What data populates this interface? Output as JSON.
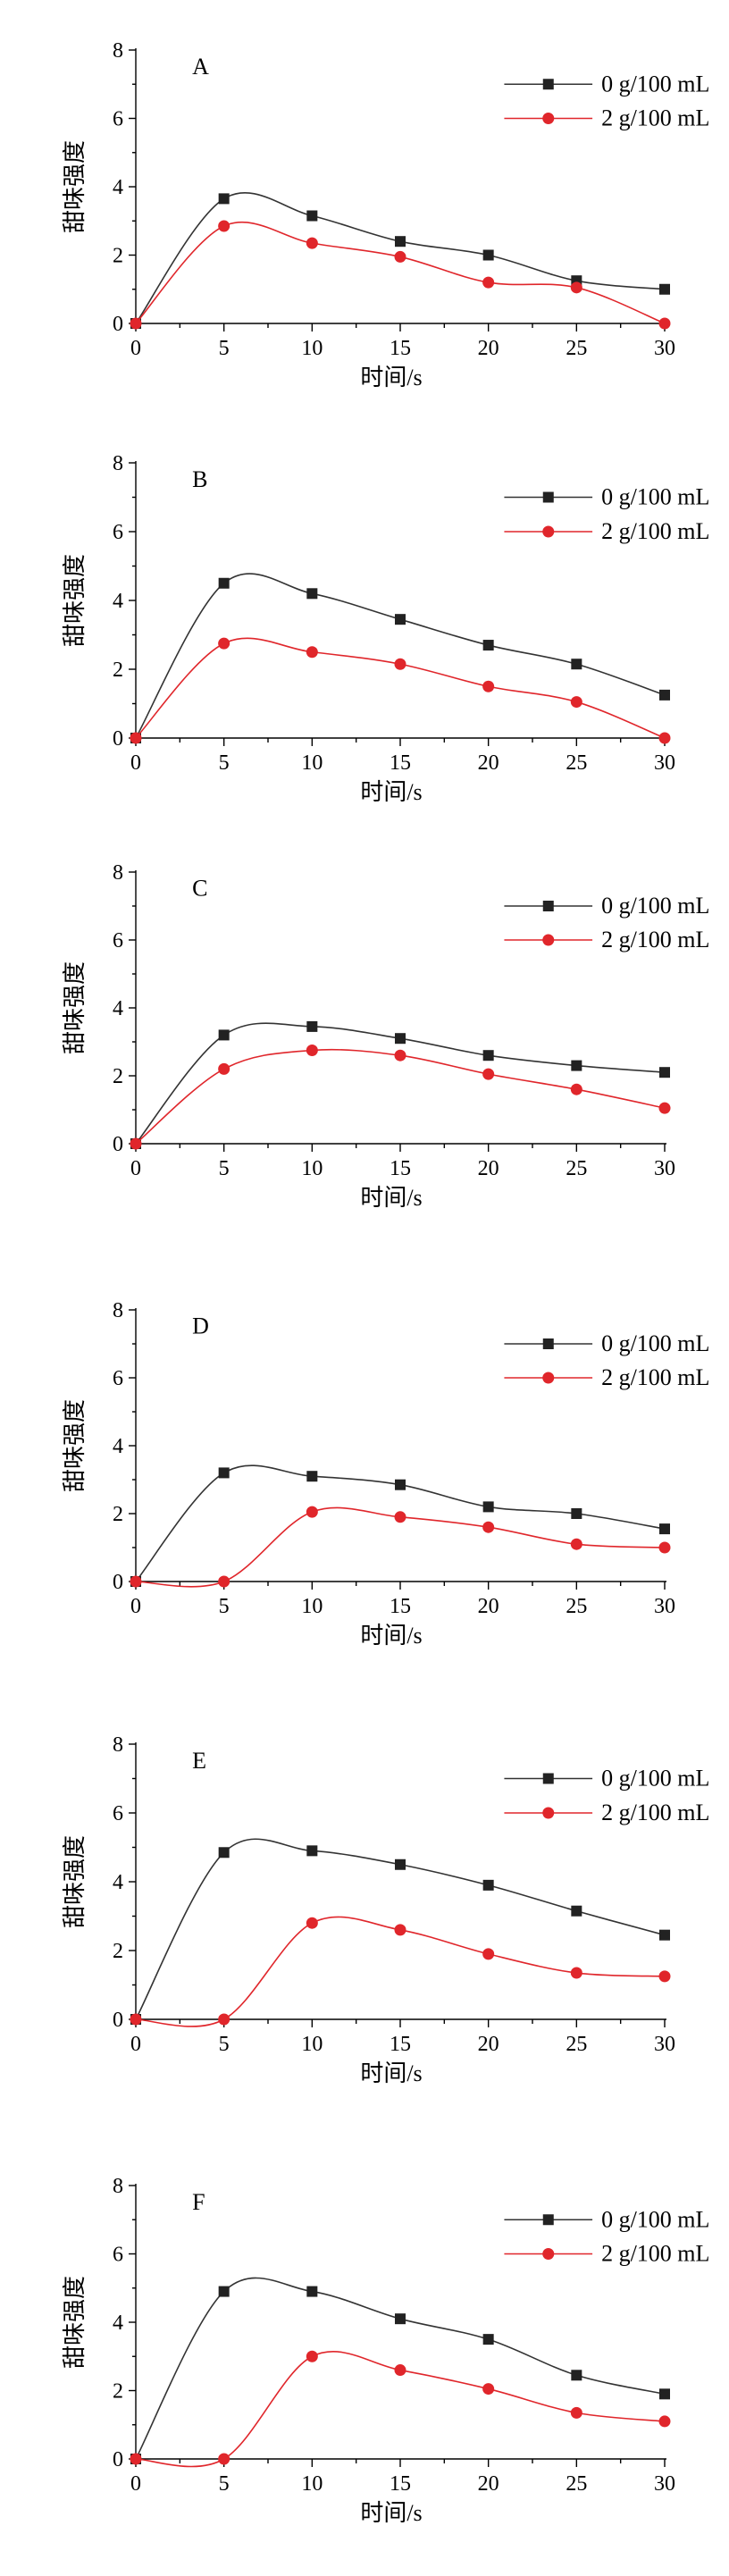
{
  "chart_data": [
    {
      "type": "line",
      "panel_label": "A",
      "xlabel": "时间/s",
      "ylabel": "甜味强度",
      "x": [
        0,
        5,
        10,
        15,
        20,
        25,
        30
      ],
      "xlim": [
        0,
        30
      ],
      "ylim": [
        0,
        8
      ],
      "xticks": [
        "0",
        "5",
        "10",
        "15",
        "20",
        "25",
        "30"
      ],
      "yticks": [
        "0",
        "2",
        "4",
        "6",
        "8"
      ],
      "legend_position": "top-right",
      "series": [
        {
          "name": "0 g/100 mL",
          "marker": "square",
          "color": "#333333",
          "values": [
            0,
            3.65,
            3.15,
            2.4,
            2.0,
            1.25,
            1.0
          ]
        },
        {
          "name": "2 g/100 mL",
          "marker": "circle",
          "color": "#e0262b",
          "values": [
            0,
            2.85,
            2.35,
            1.95,
            1.2,
            1.05,
            0
          ]
        }
      ]
    },
    {
      "type": "line",
      "panel_label": "B",
      "xlabel": "时间/s",
      "ylabel": "甜味强度",
      "x": [
        0,
        5,
        10,
        15,
        20,
        25,
        30
      ],
      "xlim": [
        0,
        30
      ],
      "ylim": [
        0,
        8
      ],
      "xticks": [
        "0",
        "5",
        "10",
        "15",
        "20",
        "25",
        "30"
      ],
      "yticks": [
        "0",
        "2",
        "4",
        "6",
        "8"
      ],
      "legend_position": "top-right",
      "series": [
        {
          "name": "0 g/100 mL",
          "marker": "square",
          "color": "#333333",
          "values": [
            0,
            4.5,
            4.2,
            3.45,
            2.7,
            2.15,
            1.25
          ]
        },
        {
          "name": "2 g/100 mL",
          "marker": "circle",
          "color": "#e0262b",
          "values": [
            0,
            2.75,
            2.5,
            2.15,
            1.5,
            1.05,
            0
          ]
        }
      ]
    },
    {
      "type": "line",
      "panel_label": "C",
      "xlabel": "时间/s",
      "ylabel": "甜味强度",
      "x": [
        0,
        5,
        10,
        15,
        20,
        25,
        30
      ],
      "xlim": [
        0,
        30
      ],
      "ylim": [
        0,
        8
      ],
      "xticks": [
        "0",
        "5",
        "10",
        "15",
        "20",
        "25",
        "30"
      ],
      "yticks": [
        "0",
        "2",
        "4",
        "6",
        "8"
      ],
      "legend_position": "top-right",
      "series": [
        {
          "name": "0 g/100 mL",
          "marker": "square",
          "color": "#333333",
          "values": [
            0,
            3.2,
            3.45,
            3.1,
            2.6,
            2.3,
            2.1
          ]
        },
        {
          "name": "2 g/100 mL",
          "marker": "circle",
          "color": "#e0262b",
          "values": [
            0,
            2.2,
            2.75,
            2.6,
            2.05,
            1.6,
            1.05
          ]
        }
      ]
    },
    {
      "type": "line",
      "panel_label": "D",
      "xlabel": "时间/s",
      "ylabel": "甜味强度",
      "x": [
        0,
        5,
        10,
        15,
        20,
        25,
        30
      ],
      "xlim": [
        0,
        30
      ],
      "ylim": [
        0,
        8
      ],
      "xticks": [
        "0",
        "5",
        "10",
        "15",
        "20",
        "25",
        "30"
      ],
      "yticks": [
        "0",
        "2",
        "4",
        "6",
        "8"
      ],
      "legend_position": "top-right",
      "series": [
        {
          "name": "0 g/100 mL",
          "marker": "square",
          "color": "#333333",
          "values": [
            0,
            3.2,
            3.1,
            2.85,
            2.2,
            2.0,
            1.55
          ]
        },
        {
          "name": "2 g/100 mL",
          "marker": "circle",
          "color": "#e0262b",
          "values": [
            0,
            0,
            2.05,
            1.9,
            1.6,
            1.1,
            1.0
          ]
        }
      ]
    },
    {
      "type": "line",
      "panel_label": "E",
      "xlabel": "时间/s",
      "ylabel": "甜味强度",
      "x": [
        0,
        5,
        10,
        15,
        20,
        25,
        30
      ],
      "xlim": [
        0,
        30
      ],
      "ylim": [
        0,
        8
      ],
      "xticks": [
        "0",
        "5",
        "10",
        "15",
        "20",
        "25",
        "30"
      ],
      "yticks": [
        "0",
        "2",
        "4",
        "6",
        "8"
      ],
      "legend_position": "top-right",
      "series": [
        {
          "name": "0 g/100 mL",
          "marker": "square",
          "color": "#333333",
          "values": [
            0,
            4.85,
            4.9,
            4.5,
            3.9,
            3.15,
            2.45
          ]
        },
        {
          "name": "2 g/100 mL",
          "marker": "circle",
          "color": "#e0262b",
          "values": [
            0,
            0,
            2.8,
            2.6,
            1.9,
            1.35,
            1.25
          ]
        }
      ]
    },
    {
      "type": "line",
      "panel_label": "F",
      "xlabel": "时间/s",
      "ylabel": "甜味强度",
      "x": [
        0,
        5,
        10,
        15,
        20,
        25,
        30
      ],
      "xlim": [
        0,
        30
      ],
      "ylim": [
        0,
        8
      ],
      "xticks": [
        "0",
        "5",
        "10",
        "15",
        "20",
        "25",
        "30"
      ],
      "yticks": [
        "0",
        "2",
        "4",
        "6",
        "8"
      ],
      "legend_position": "top-right",
      "series": [
        {
          "name": "0 g/100 mL",
          "marker": "square",
          "color": "#333333",
          "values": [
            0,
            4.9,
            4.9,
            4.1,
            3.5,
            2.45,
            1.9
          ]
        },
        {
          "name": "2 g/100 mL",
          "marker": "circle",
          "color": "#e0262b",
          "values": [
            0,
            0,
            3.0,
            2.6,
            2.05,
            1.35,
            1.1
          ]
        }
      ]
    }
  ]
}
